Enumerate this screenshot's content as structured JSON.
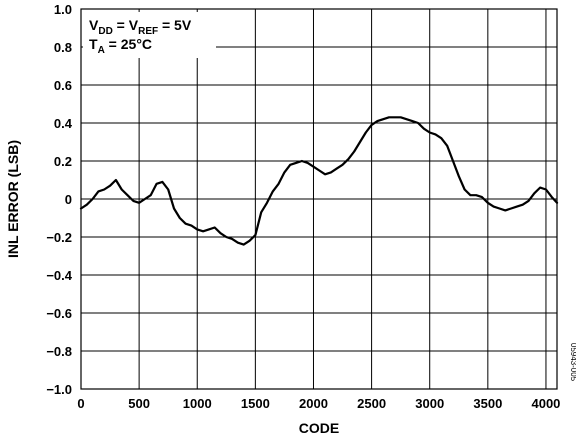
{
  "chart_data": {
    "type": "line",
    "xlabel": "CODE",
    "ylabel": "INL ERROR (LSB)",
    "xlim": [
      0,
      4095
    ],
    "ylim": [
      -1.0,
      1.0
    ],
    "x_ticks": [
      "0",
      "500",
      "1000",
      "1500",
      "2000",
      "2500",
      "3000",
      "3500",
      "4000"
    ],
    "y_ticks": [
      "1.0",
      "0.8",
      "0.6",
      "0.4",
      "0.2",
      "0",
      "−0.2",
      "−0.4",
      "−0.6",
      "−0.8",
      "−1.0"
    ],
    "grid": true,
    "annotation": {
      "line1": {
        "v": "V",
        "dd": "DD",
        "eq": " = V",
        "ref": "REF",
        "tail": " = 5V"
      },
      "line2": {
        "t": "T",
        "a": "A",
        "tail": " = 25°C"
      }
    },
    "figure_id": "05943-005",
    "series": [
      {
        "x": [
          0,
          50,
          100,
          150,
          200,
          250,
          300,
          350,
          400,
          450,
          500,
          550,
          600,
          650,
          700,
          750,
          800,
          850,
          900,
          950,
          1000,
          1050,
          1100,
          1150,
          1200,
          1250,
          1300,
          1350,
          1400,
          1450,
          1500,
          1550,
          1600,
          1650,
          1700,
          1750,
          1800,
          1850,
          1900,
          1950,
          2000,
          2050,
          2100,
          2150,
          2200,
          2250,
          2300,
          2350,
          2400,
          2450,
          2500,
          2550,
          2600,
          2650,
          2700,
          2750,
          2800,
          2850,
          2900,
          2950,
          3000,
          3050,
          3100,
          3150,
          3200,
          3250,
          3300,
          3350,
          3400,
          3450,
          3500,
          3550,
          3600,
          3650,
          3700,
          3750,
          3800,
          3850,
          3900,
          3950,
          4000,
          4050,
          4095
        ],
        "values": [
          -0.05,
          -0.03,
          0.0,
          0.04,
          0.05,
          0.07,
          0.1,
          0.05,
          0.02,
          -0.01,
          -0.02,
          0.0,
          0.02,
          0.08,
          0.09,
          0.05,
          -0.05,
          -0.1,
          -0.13,
          -0.14,
          -0.16,
          -0.17,
          -0.16,
          -0.15,
          -0.18,
          -0.2,
          -0.21,
          -0.23,
          -0.24,
          -0.22,
          -0.19,
          -0.07,
          -0.02,
          0.04,
          0.08,
          0.14,
          0.18,
          0.19,
          0.2,
          0.19,
          0.17,
          0.15,
          0.13,
          0.14,
          0.16,
          0.18,
          0.21,
          0.25,
          0.3,
          0.35,
          0.39,
          0.41,
          0.42,
          0.43,
          0.43,
          0.43,
          0.42,
          0.41,
          0.4,
          0.37,
          0.35,
          0.34,
          0.32,
          0.28,
          0.2,
          0.12,
          0.05,
          0.02,
          0.02,
          0.01,
          -0.02,
          -0.04,
          -0.05,
          -0.06,
          -0.05,
          -0.04,
          -0.03,
          -0.01,
          0.03,
          0.06,
          0.05,
          0.01,
          -0.02
        ]
      }
    ]
  }
}
